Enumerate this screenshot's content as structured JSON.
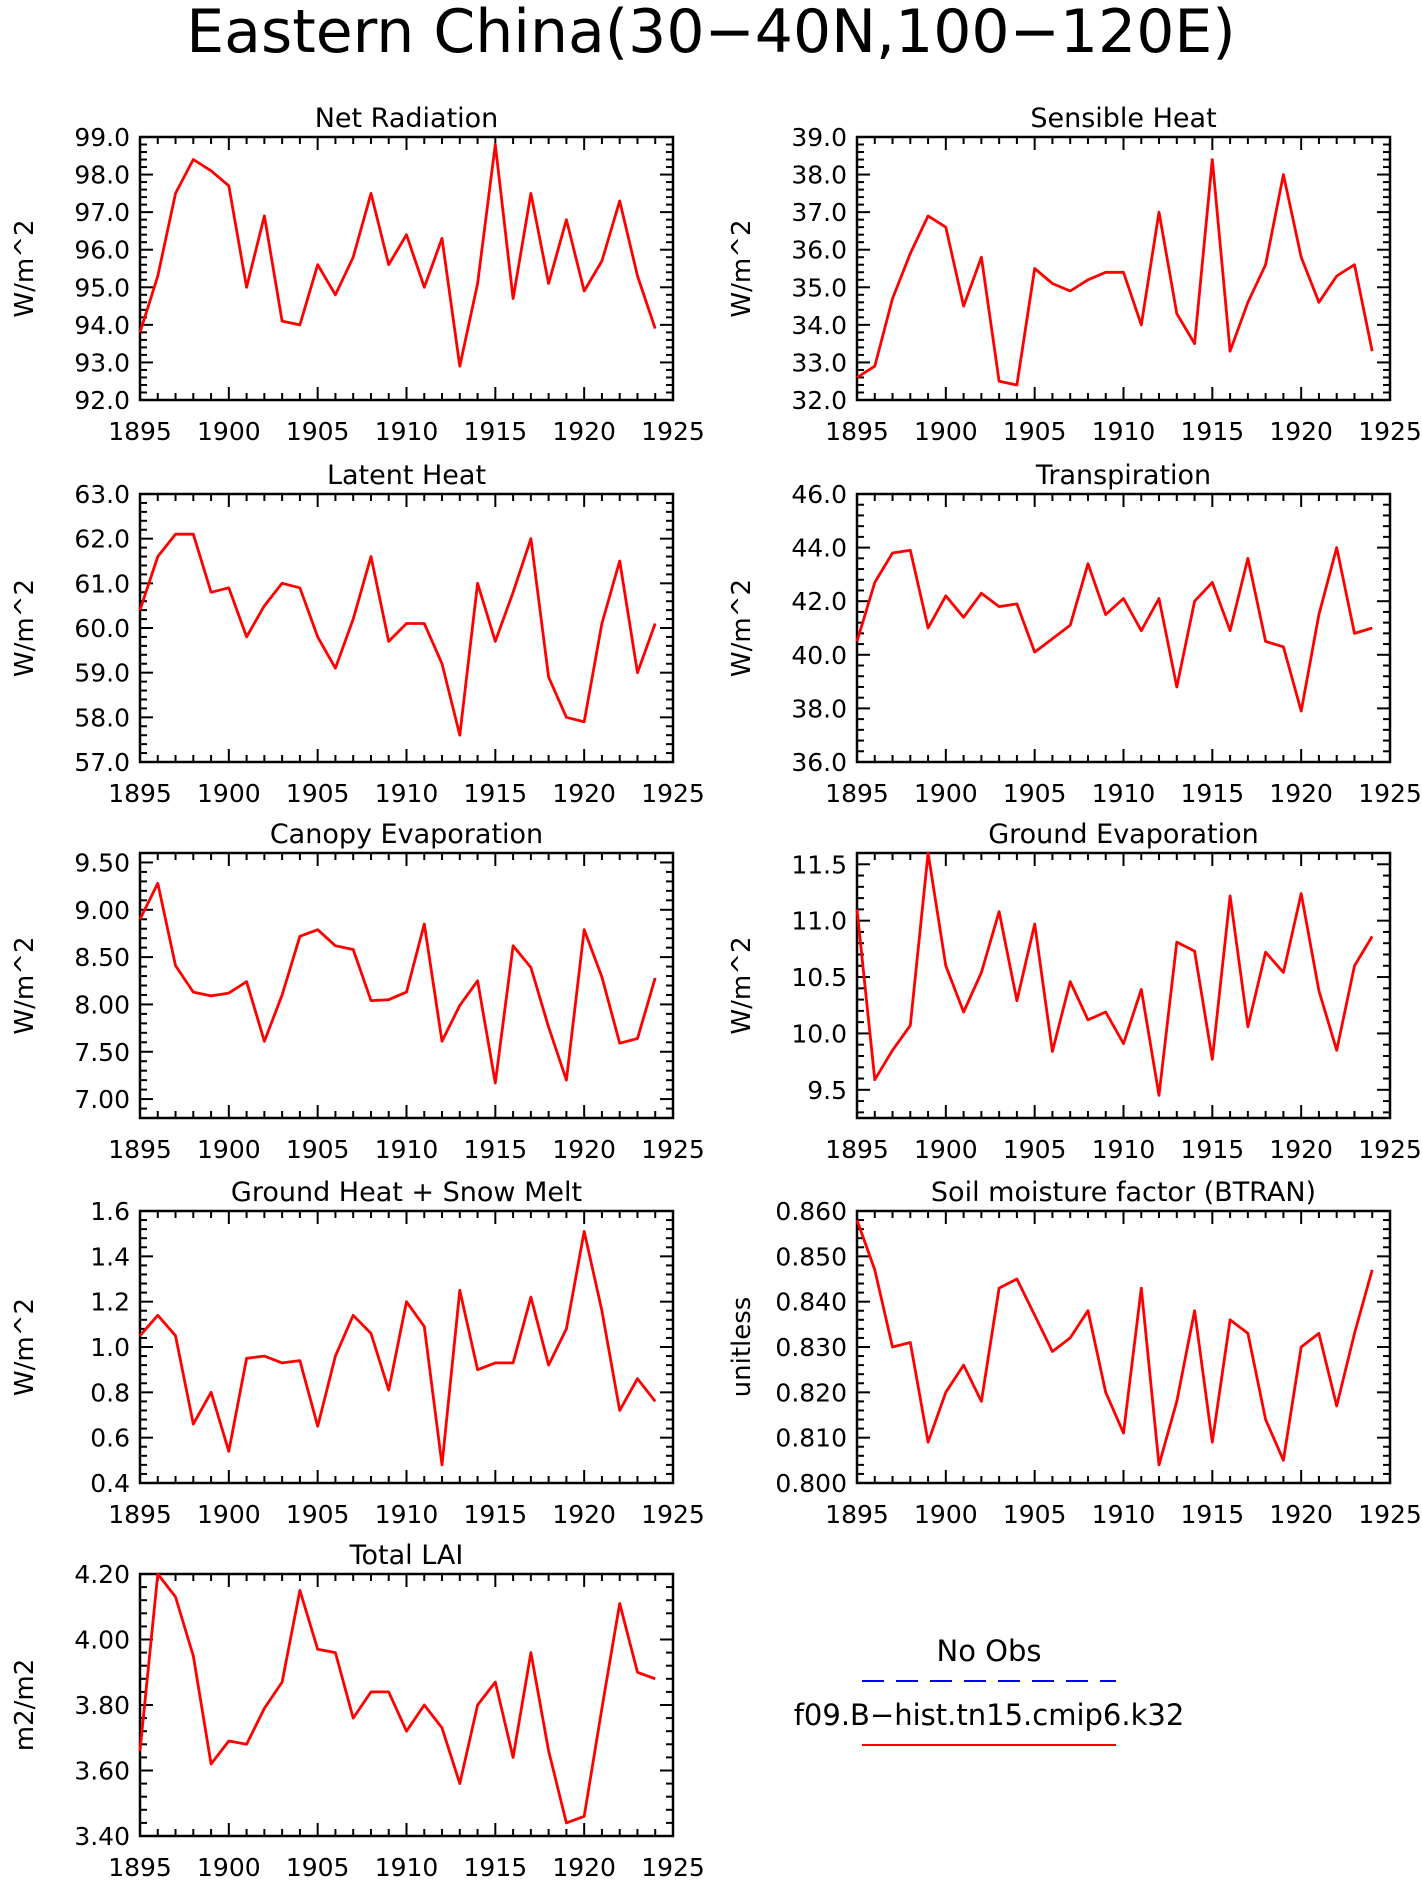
{
  "title": "Eastern China(30−40N,100−120E)",
  "colors": {
    "model": "#ff0000",
    "obs": "#0000ff",
    "axis": "#000000"
  },
  "legend": {
    "obs_label": "No Obs",
    "model_label": "f09.B−hist.tn15.cmip6.k32"
  },
  "chart_data": [
    {
      "type": "line",
      "title": "Net Radiation",
      "xlabel": "",
      "ylabel": "W/m^2",
      "xlim": [
        1895,
        1925
      ],
      "ylim": [
        92.0,
        99.0
      ],
      "xticks": [
        "1895",
        "1900",
        "1905",
        "1910",
        "1915",
        "1920",
        "1925"
      ],
      "yticks": [
        "92.0",
        "93.0",
        "94.0",
        "95.0",
        "96.0",
        "97.0",
        "98.0",
        "99.0"
      ],
      "grid": false,
      "x": [
        1895,
        1896,
        1897,
        1898,
        1899,
        1900,
        1901,
        1902,
        1903,
        1904,
        1905,
        1906,
        1907,
        1908,
        1909,
        1910,
        1911,
        1912,
        1913,
        1914,
        1915,
        1916,
        1917,
        1918,
        1919,
        1920,
        1921,
        1922,
        1923,
        1924
      ],
      "series": [
        {
          "values": [
            93.8,
            95.3,
            97.5,
            98.4,
            98.1,
            97.7,
            95.0,
            96.9,
            94.1,
            94.0,
            95.6,
            94.8,
            95.8,
            97.5,
            95.6,
            96.4,
            95.0,
            96.3,
            92.9,
            95.1,
            98.8,
            94.7,
            97.5,
            95.1,
            96.8,
            94.9,
            95.7,
            97.3,
            95.3,
            93.9
          ]
        }
      ]
    },
    {
      "type": "line",
      "title": "Sensible Heat",
      "xlabel": "",
      "ylabel": "W/m^2",
      "xlim": [
        1895,
        1925
      ],
      "ylim": [
        32.0,
        39.0
      ],
      "xticks": [
        "1895",
        "1900",
        "1905",
        "1910",
        "1915",
        "1920",
        "1925"
      ],
      "yticks": [
        "32.0",
        "33.0",
        "34.0",
        "35.0",
        "36.0",
        "37.0",
        "38.0",
        "39.0"
      ],
      "grid": false,
      "x": [
        1895,
        1896,
        1897,
        1898,
        1899,
        1900,
        1901,
        1902,
        1903,
        1904,
        1905,
        1906,
        1907,
        1908,
        1909,
        1910,
        1911,
        1912,
        1913,
        1914,
        1915,
        1916,
        1917,
        1918,
        1919,
        1920,
        1921,
        1922,
        1923,
        1924
      ],
      "series": [
        {
          "values": [
            32.6,
            32.9,
            34.7,
            35.9,
            36.9,
            36.6,
            34.5,
            35.8,
            32.5,
            32.4,
            35.5,
            35.1,
            34.9,
            35.2,
            35.4,
            35.4,
            34.0,
            37.0,
            34.3,
            33.5,
            38.4,
            33.3,
            34.6,
            35.6,
            38.0,
            35.8,
            34.6,
            35.3,
            35.6,
            33.3
          ]
        }
      ]
    },
    {
      "type": "line",
      "title": "Latent Heat",
      "xlabel": "",
      "ylabel": "W/m^2",
      "xlim": [
        1895,
        1925
      ],
      "ylim": [
        57.0,
        63.0
      ],
      "xticks": [
        "1895",
        "1900",
        "1905",
        "1910",
        "1915",
        "1920",
        "1925"
      ],
      "yticks": [
        "57.0",
        "58.0",
        "59.0",
        "60.0",
        "61.0",
        "62.0",
        "63.0"
      ],
      "grid": false,
      "x": [
        1895,
        1896,
        1897,
        1898,
        1899,
        1900,
        1901,
        1902,
        1903,
        1904,
        1905,
        1906,
        1907,
        1908,
        1909,
        1910,
        1911,
        1912,
        1913,
        1914,
        1915,
        1916,
        1917,
        1918,
        1919,
        1920,
        1921,
        1922,
        1923,
        1924
      ],
      "series": [
        {
          "values": [
            60.4,
            61.6,
            62.1,
            62.1,
            60.8,
            60.9,
            59.8,
            60.5,
            61.0,
            60.9,
            59.8,
            59.1,
            60.2,
            61.6,
            59.7,
            60.1,
            60.1,
            59.2,
            57.6,
            61.0,
            59.7,
            60.8,
            62.0,
            58.9,
            58.0,
            57.9,
            60.1,
            61.5,
            59.0,
            60.1
          ]
        }
      ]
    },
    {
      "type": "line",
      "title": "Transpiration",
      "xlabel": "",
      "ylabel": "W/m^2",
      "xlim": [
        1895,
        1925
      ],
      "ylim": [
        36.0,
        46.0
      ],
      "xticks": [
        "1895",
        "1900",
        "1905",
        "1910",
        "1915",
        "1920",
        "1925"
      ],
      "yticks": [
        "36.0",
        "38.0",
        "40.0",
        "42.0",
        "44.0",
        "46.0"
      ],
      "grid": false,
      "x": [
        1895,
        1896,
        1897,
        1898,
        1899,
        1900,
        1901,
        1902,
        1903,
        1904,
        1905,
        1906,
        1907,
        1908,
        1909,
        1910,
        1911,
        1912,
        1913,
        1914,
        1915,
        1916,
        1917,
        1918,
        1919,
        1920,
        1921,
        1922,
        1923,
        1924
      ],
      "series": [
        {
          "values": [
            40.5,
            42.7,
            43.8,
            43.9,
            41.0,
            42.2,
            41.4,
            42.3,
            41.8,
            41.9,
            40.1,
            40.6,
            41.1,
            43.4,
            41.5,
            42.1,
            40.9,
            42.1,
            38.8,
            42.0,
            42.7,
            40.9,
            43.6,
            40.5,
            40.3,
            37.9,
            41.5,
            44.0,
            40.8,
            41.0
          ]
        }
      ]
    },
    {
      "type": "line",
      "title": "Canopy Evaporation",
      "xlabel": "",
      "ylabel": "W/m^2",
      "xlim": [
        1895,
        1925
      ],
      "ylim": [
        6.8,
        9.6
      ],
      "xticks": [
        "1895",
        "1900",
        "1905",
        "1910",
        "1915",
        "1920",
        "1925"
      ],
      "yticks": [
        "7.00",
        "7.50",
        "8.00",
        "8.50",
        "9.00",
        "9.50"
      ],
      "grid": false,
      "x": [
        1895,
        1896,
        1897,
        1898,
        1899,
        1900,
        1901,
        1902,
        1903,
        1904,
        1905,
        1906,
        1907,
        1908,
        1909,
        1910,
        1911,
        1912,
        1913,
        1914,
        1915,
        1916,
        1917,
        1918,
        1919,
        1920,
        1921,
        1922,
        1923,
        1924
      ],
      "series": [
        {
          "values": [
            8.9,
            9.28,
            8.41,
            8.13,
            8.09,
            8.12,
            8.24,
            7.61,
            8.1,
            8.72,
            8.79,
            8.62,
            8.58,
            8.04,
            8.05,
            8.13,
            8.85,
            7.61,
            7.99,
            8.25,
            7.17,
            8.62,
            8.39,
            7.76,
            7.2,
            8.79,
            8.29,
            7.59,
            7.64,
            8.28
          ]
        }
      ]
    },
    {
      "type": "line",
      "title": "Ground Evaporation",
      "xlabel": "",
      "ylabel": "W/m^2",
      "xlim": [
        1895,
        1925
      ],
      "ylim": [
        9.25,
        11.6
      ],
      "xticks": [
        "1895",
        "1900",
        "1905",
        "1910",
        "1915",
        "1920",
        "1925"
      ],
      "yticks": [
        "9.5",
        "10.0",
        "10.5",
        "11.0",
        "11.5"
      ],
      "grid": false,
      "x": [
        1895,
        1896,
        1897,
        1898,
        1899,
        1900,
        1901,
        1902,
        1903,
        1904,
        1905,
        1906,
        1907,
        1908,
        1909,
        1910,
        1911,
        1912,
        1913,
        1914,
        1915,
        1916,
        1917,
        1918,
        1919,
        1920,
        1921,
        1922,
        1923,
        1924
      ],
      "series": [
        {
          "values": [
            11.1,
            9.59,
            9.85,
            10.07,
            11.6,
            10.6,
            10.19,
            10.54,
            11.08,
            10.29,
            10.97,
            9.84,
            10.46,
            10.12,
            10.19,
            9.91,
            10.39,
            9.45,
            10.81,
            10.73,
            9.77,
            11.22,
            10.06,
            10.72,
            10.54,
            11.24,
            10.38,
            9.85,
            10.6,
            10.86
          ]
        }
      ]
    },
    {
      "type": "line",
      "title": "Ground Heat + Snow Melt",
      "xlabel": "",
      "ylabel": "W/m^2",
      "xlim": [
        1895,
        1925
      ],
      "ylim": [
        0.4,
        1.6
      ],
      "xticks": [
        "1895",
        "1900",
        "1905",
        "1910",
        "1915",
        "1920",
        "1925"
      ],
      "yticks": [
        "0.4",
        "0.6",
        "0.8",
        "1.0",
        "1.2",
        "1.4",
        "1.6"
      ],
      "grid": false,
      "x": [
        1895,
        1896,
        1897,
        1898,
        1899,
        1900,
        1901,
        1902,
        1903,
        1904,
        1905,
        1906,
        1907,
        1908,
        1909,
        1910,
        1911,
        1912,
        1913,
        1914,
        1915,
        1916,
        1917,
        1918,
        1919,
        1920,
        1921,
        1922,
        1923,
        1924
      ],
      "series": [
        {
          "values": [
            1.05,
            1.14,
            1.05,
            0.66,
            0.8,
            0.54,
            0.95,
            0.96,
            0.93,
            0.94,
            0.65,
            0.96,
            1.14,
            1.06,
            0.81,
            1.2,
            1.09,
            0.48,
            1.25,
            0.9,
            0.93,
            0.93,
            1.22,
            0.92,
            1.08,
            1.51,
            1.16,
            0.72,
            0.86,
            0.76
          ]
        }
      ]
    },
    {
      "type": "line",
      "title": "Soil moisture factor (BTRAN)",
      "xlabel": "",
      "ylabel": "unitless",
      "xlim": [
        1895,
        1925
      ],
      "ylim": [
        0.8,
        0.86
      ],
      "xticks": [
        "1895",
        "1900",
        "1905",
        "1910",
        "1915",
        "1920",
        "1925"
      ],
      "yticks": [
        "0.800",
        "0.810",
        "0.820",
        "0.830",
        "0.840",
        "0.850",
        "0.860"
      ],
      "grid": false,
      "x": [
        1895,
        1896,
        1897,
        1898,
        1899,
        1900,
        1901,
        1902,
        1903,
        1904,
        1905,
        1906,
        1907,
        1908,
        1909,
        1910,
        1911,
        1912,
        1913,
        1914,
        1915,
        1916,
        1917,
        1918,
        1919,
        1920,
        1921,
        1922,
        1923,
        1924
      ],
      "series": [
        {
          "values": [
            0.858,
            0.847,
            0.83,
            0.831,
            0.809,
            0.82,
            0.826,
            0.818,
            0.843,
            0.845,
            0.837,
            0.829,
            0.832,
            0.838,
            0.82,
            0.811,
            0.843,
            0.804,
            0.818,
            0.838,
            0.809,
            0.836,
            0.833,
            0.814,
            0.805,
            0.83,
            0.833,
            0.817,
            0.833,
            0.847
          ]
        }
      ]
    },
    {
      "type": "line",
      "title": "Total LAI",
      "xlabel": "",
      "ylabel": "m2/m2",
      "xlim": [
        1895,
        1925
      ],
      "ylim": [
        3.4,
        4.2
      ],
      "xticks": [
        "1895",
        "1900",
        "1905",
        "1910",
        "1915",
        "1920",
        "1925"
      ],
      "yticks": [
        "3.40",
        "3.60",
        "3.80",
        "4.00",
        "4.20"
      ],
      "grid": false,
      "x": [
        1895,
        1896,
        1897,
        1898,
        1899,
        1900,
        1901,
        1902,
        1903,
        1904,
        1905,
        1906,
        1907,
        1908,
        1909,
        1910,
        1911,
        1912,
        1913,
        1914,
        1915,
        1916,
        1917,
        1918,
        1919,
        1920,
        1921,
        1922,
        1923,
        1924
      ],
      "series": [
        {
          "values": [
            3.66,
            4.2,
            4.13,
            3.95,
            3.62,
            3.69,
            3.68,
            3.79,
            3.87,
            4.15,
            3.97,
            3.96,
            3.76,
            3.84,
            3.84,
            3.72,
            3.8,
            3.73,
            3.56,
            3.8,
            3.87,
            3.64,
            3.96,
            3.66,
            3.44,
            3.46,
            3.79,
            4.11,
            3.9,
            3.88
          ]
        }
      ]
    }
  ]
}
